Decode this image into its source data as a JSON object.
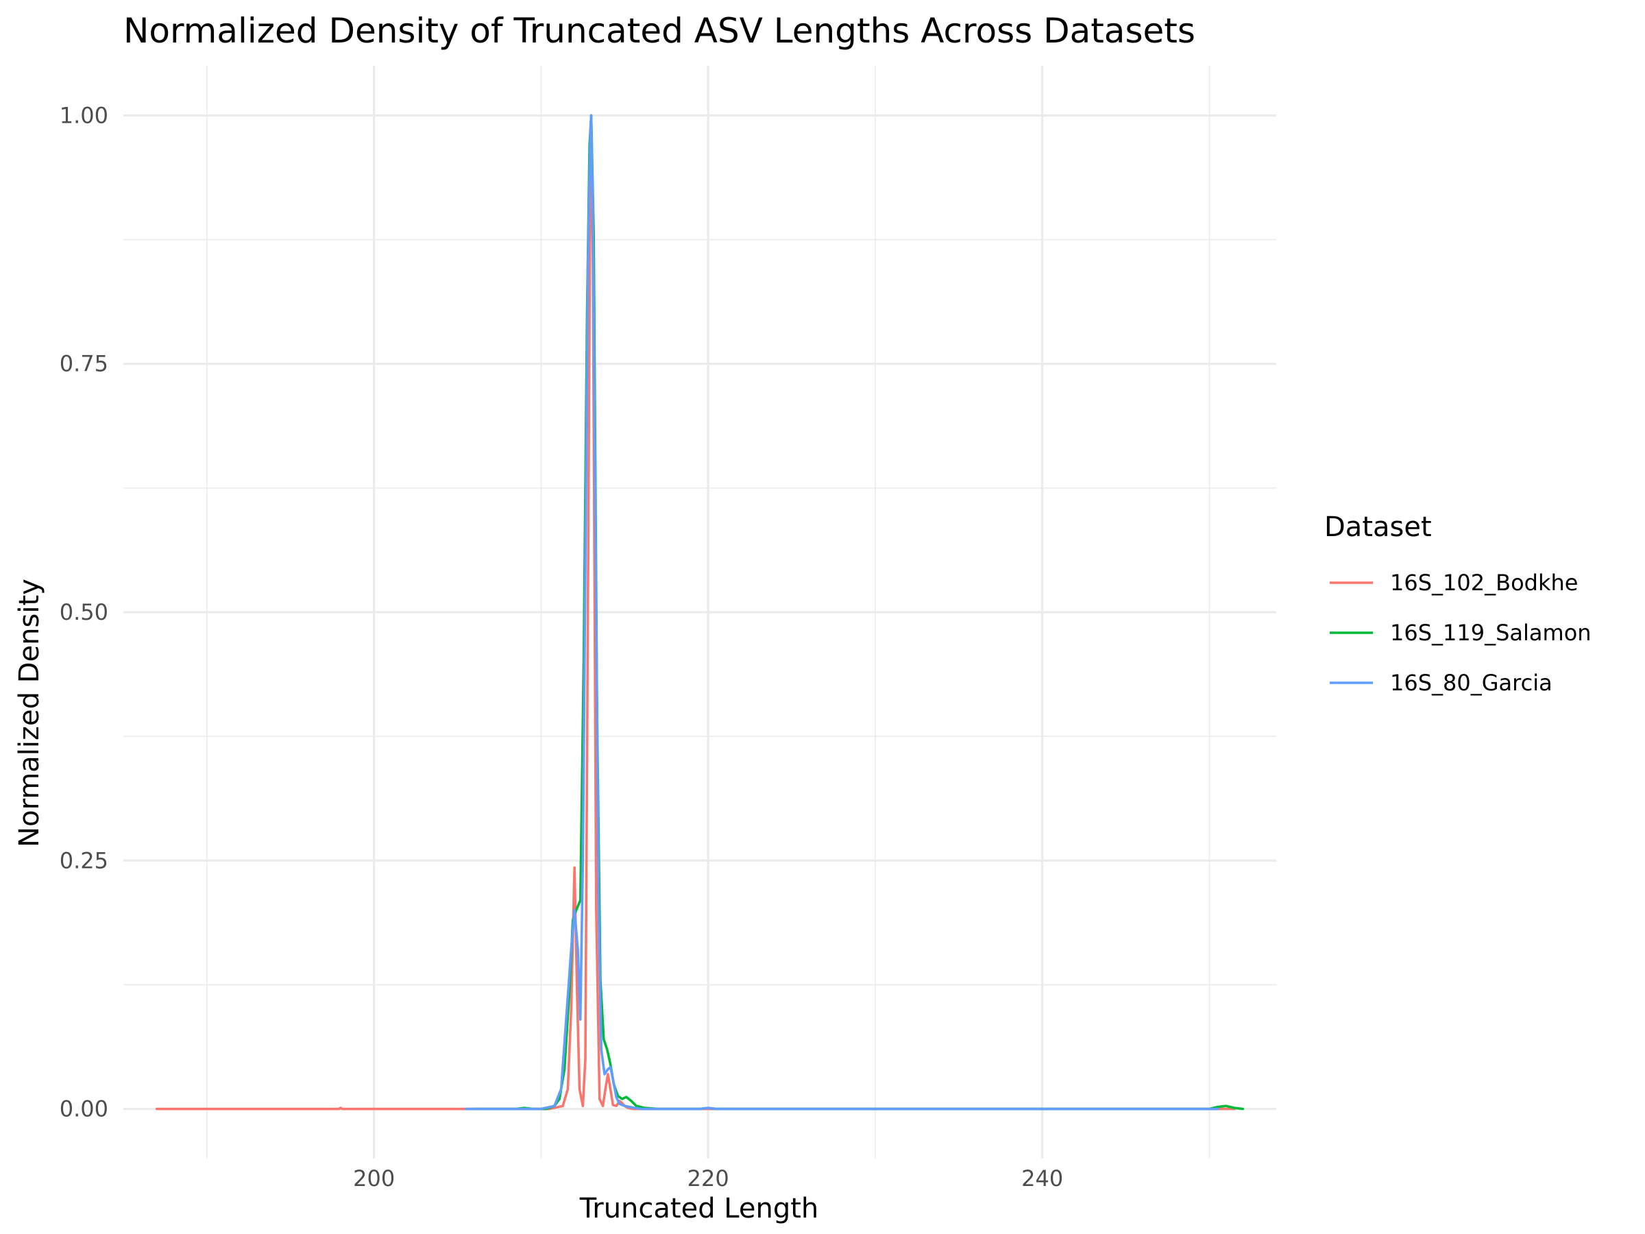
{
  "chart_data": {
    "type": "line",
    "title": "Normalized Density of Truncated ASV Lengths Across Datasets",
    "xlabel": "Truncated Length",
    "ylabel": "Normalized Density",
    "xlim": [
      185,
      254
    ],
    "ylim": [
      -0.05,
      1.05
    ],
    "x_ticks": [
      200,
      220,
      240
    ],
    "x_tick_labels": [
      "200",
      "220",
      "240"
    ],
    "x_minor": [
      190,
      210,
      230,
      250
    ],
    "y_ticks": [
      0,
      0.25,
      0.5,
      0.75,
      1
    ],
    "y_tick_labels": [
      "0.00",
      "0.25",
      "0.50",
      "0.75",
      "1.00"
    ],
    "y_minor": [
      0.125,
      0.375,
      0.625,
      0.875
    ],
    "grid": true,
    "legend": {
      "title": "Dataset",
      "position": "right"
    },
    "series": [
      {
        "name": "16S_102_Bodkhe",
        "color": "#F8766D",
        "x": [
          187,
          197.9,
          198,
          198.1,
          210.5,
          211.3,
          211.6,
          211.8,
          212.0,
          212.15,
          212.3,
          212.5,
          212.65,
          212.8,
          212.95,
          213.0,
          213.1,
          213.3,
          213.5,
          213.7,
          213.85,
          214.0,
          214.15,
          214.3,
          214.5,
          214.7,
          214.85,
          215.0,
          215.2,
          215.5,
          216.0,
          251.5
        ],
        "y": [
          0,
          0,
          0.001,
          0,
          0,
          0.003,
          0.02,
          0.1,
          0.243,
          0.12,
          0.02,
          0.003,
          0.05,
          0.5,
          0.95,
          1.0,
          0.85,
          0.2,
          0.01,
          0.003,
          0.02,
          0.035,
          0.02,
          0.004,
          0.003,
          0.008,
          0.006,
          0.003,
          0.001,
          0,
          0,
          0
        ]
      },
      {
        "name": "16S_119_Salamon",
        "color": "#00BA38",
        "x": [
          206,
          208.5,
          209,
          209.5,
          210.3,
          210.8,
          211.1,
          211.4,
          211.7,
          211.9,
          212.1,
          212.35,
          212.55,
          212.75,
          212.9,
          213.0,
          213.15,
          213.35,
          213.55,
          213.75,
          213.95,
          214.15,
          214.35,
          214.6,
          214.85,
          215.1,
          215.4,
          215.7,
          216.2,
          217,
          219.5,
          220,
          220.5,
          249,
          250,
          250.5,
          251,
          251.5,
          252
        ],
        "y": [
          0,
          0,
          0.001,
          0,
          0,
          0.003,
          0.01,
          0.04,
          0.12,
          0.19,
          0.2,
          0.21,
          0.45,
          0.8,
          0.97,
          1.0,
          0.88,
          0.4,
          0.13,
          0.07,
          0.06,
          0.045,
          0.025,
          0.013,
          0.01,
          0.012,
          0.008,
          0.003,
          0.001,
          0,
          0,
          0.001,
          0,
          0,
          0,
          0.002,
          0.003,
          0.001,
          0
        ]
      },
      {
        "name": "16S_80_Garcia",
        "color": "#619CFF",
        "x": [
          205.5,
          210,
          210.8,
          211.2,
          211.5,
          211.8,
          212.0,
          212.2,
          212.35,
          212.5,
          212.65,
          212.8,
          212.95,
          213.0,
          213.1,
          213.3,
          213.45,
          213.6,
          213.8,
          214.0,
          214.15,
          214.3,
          214.5,
          214.7,
          215.0,
          215.3,
          215.6,
          216,
          219.5,
          220,
          220.5,
          246,
          250.5
        ],
        "y": [
          0,
          0,
          0.003,
          0.02,
          0.09,
          0.16,
          0.2,
          0.16,
          0.09,
          0.25,
          0.55,
          0.85,
          0.98,
          1.0,
          0.9,
          0.5,
          0.2,
          0.06,
          0.035,
          0.04,
          0.042,
          0.03,
          0.012,
          0.005,
          0.003,
          0.002,
          0.001,
          0,
          0,
          0.001,
          0,
          0,
          0
        ]
      }
    ]
  }
}
